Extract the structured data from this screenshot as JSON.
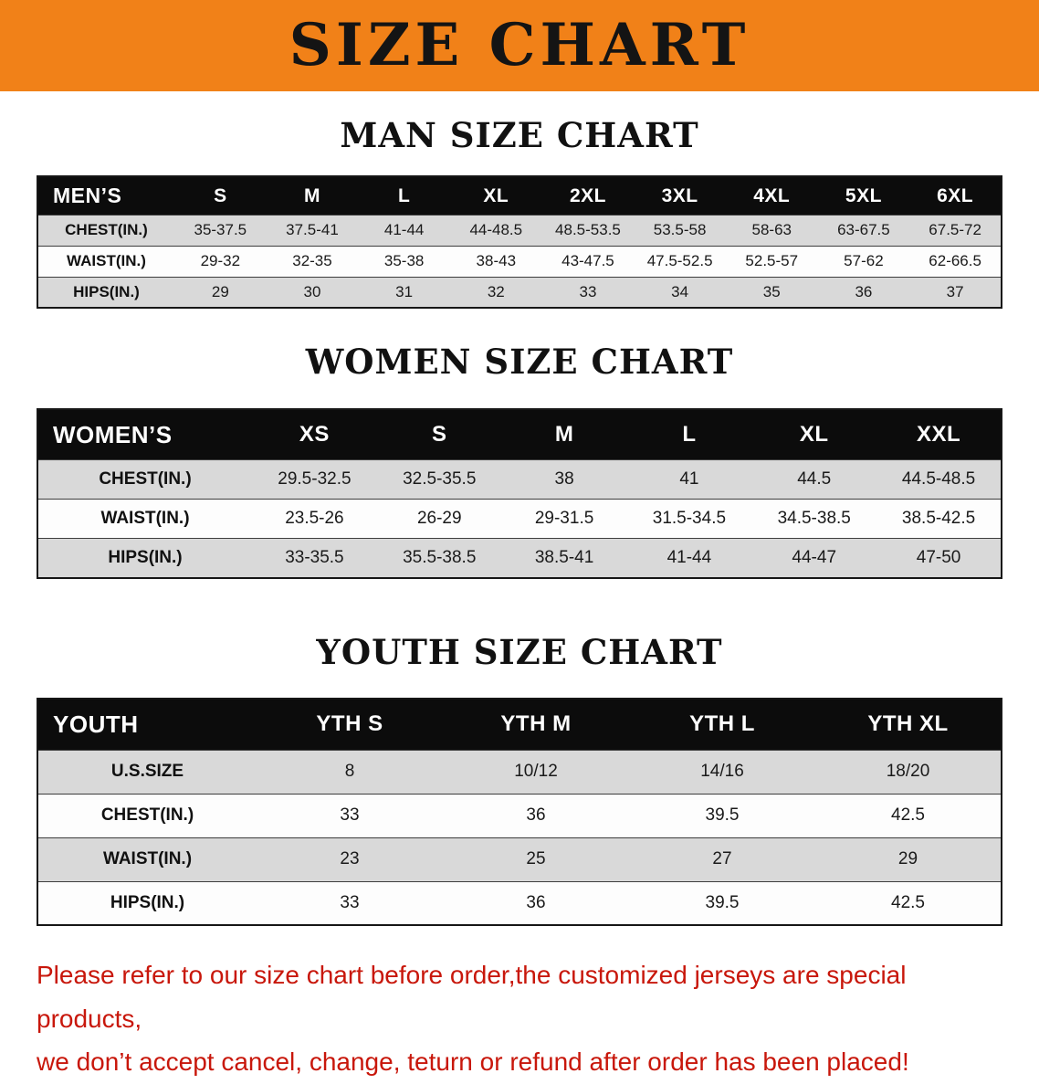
{
  "banner": {
    "title": "SIZE CHART",
    "bg_color": "#f18118",
    "text_color": "#141414"
  },
  "sections": [
    {
      "id": "men",
      "heading": "MAN SIZE CHART",
      "table": {
        "header": [
          "MEN’S",
          "S",
          "M",
          "L",
          "XL",
          "2XL",
          "3XL",
          "4XL",
          "5XL",
          "6XL"
        ],
        "rows": [
          [
            "CHEST(IN.)",
            "35-37.5",
            "37.5-41",
            "41-44",
            "44-48.5",
            "48.5-53.5",
            "53.5-58",
            "58-63",
            "63-67.5",
            "67.5-72"
          ],
          [
            "WAIST(IN.)",
            "29-32",
            "32-35",
            "35-38",
            "38-43",
            "43-47.5",
            "47.5-52.5",
            "52.5-57",
            "57-62",
            "62-66.5"
          ],
          [
            "HIPS(IN.)",
            "29",
            "30",
            "31",
            "32",
            "33",
            "34",
            "35",
            "36",
            "37"
          ]
        ]
      }
    },
    {
      "id": "women",
      "heading": "WOMEN SIZE CHART",
      "table": {
        "header": [
          "WOMEN’S",
          "XS",
          "S",
          "M",
          "L",
          "XL",
          "XXL"
        ],
        "rows": [
          [
            "CHEST(IN.)",
            "29.5-32.5",
            "32.5-35.5",
            "38",
            "41",
            "44.5",
            "44.5-48.5"
          ],
          [
            "WAIST(IN.)",
            "23.5-26",
            "26-29",
            "29-31.5",
            "31.5-34.5",
            "34.5-38.5",
            "38.5-42.5"
          ],
          [
            "HIPS(IN.)",
            "33-35.5",
            "35.5-38.5",
            "38.5-41",
            "41-44",
            "44-47",
            "47-50"
          ]
        ]
      }
    },
    {
      "id": "youth",
      "heading": "YOUTH SIZE CHART",
      "table": {
        "header": [
          "YOUTH",
          "YTH S",
          "YTH M",
          "YTH L",
          "YTH XL"
        ],
        "rows": [
          [
            "U.S.SIZE",
            "8",
            "10/12",
            "14/16",
            "18/20"
          ],
          [
            "CHEST(IN.)",
            "33",
            "36",
            "39.5",
            "42.5"
          ],
          [
            "WAIST(IN.)",
            "23",
            "25",
            "27",
            "29"
          ],
          [
            "HIPS(IN.)",
            "33",
            "36",
            "39.5",
            "42.5"
          ]
        ]
      }
    }
  ],
  "disclaimer": {
    "line1": "Please refer to our size chart before order,the customized jerseys are special products,",
    "line2": "we don’t accept cancel, change, teturn or refund after order has been placed!",
    "text_color": "#c8170b"
  }
}
